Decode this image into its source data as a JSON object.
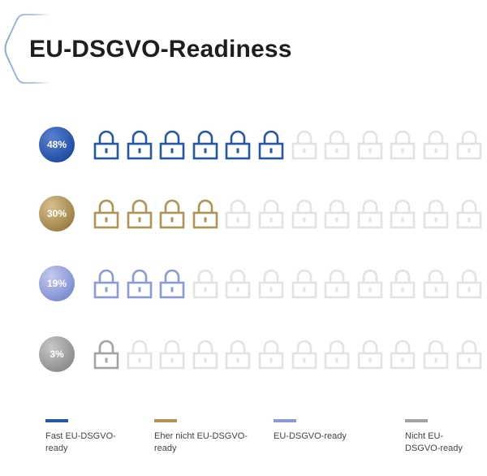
{
  "title": "EU-DSGVO-Readiness",
  "chart_data": {
    "type": "pictogram",
    "units_per_row": 12,
    "inactive_color": "#e3e3e3",
    "series": [
      {
        "name": "Fast EU-DSGVO-ready",
        "value": 48,
        "label": "48%",
        "filled": 6,
        "color": "#2557a7",
        "badge_gradient": [
          "#5a7fd0",
          "#1f4ea3"
        ]
      },
      {
        "name": "Eher nicht EU-DSGVO-ready",
        "value": 30,
        "label": "30%",
        "filled": 4,
        "color": "#b09256",
        "badge_gradient": [
          "#d7c08e",
          "#9e7e44"
        ]
      },
      {
        "name": "EU-DSGVO-ready",
        "value": 19,
        "label": "19%",
        "filled": 3,
        "color": "#8c9bd6",
        "badge_gradient": [
          "#c3cbef",
          "#7d8dd1"
        ]
      },
      {
        "name": "Nicht EU-DSGVO-ready",
        "value": 3,
        "label": "3%",
        "filled": 1,
        "color": "#a3a3a3",
        "badge_gradient": [
          "#c7c7c7",
          "#8d8d8d"
        ]
      }
    ]
  },
  "legend": [
    {
      "line1": "Fast EU-DSGVO-",
      "line2": "ready",
      "color": "#2557a7"
    },
    {
      "line1": "Eher nicht EU-DSGVO-",
      "line2": "ready",
      "color": "#b09256"
    },
    {
      "line1": "EU-DSGVO-ready",
      "line2": "",
      "color": "#8c9bd6"
    },
    {
      "line1": "Nicht EU-",
      "line2": "DSGVO-ready",
      "color": "#a3a3a3"
    }
  ]
}
